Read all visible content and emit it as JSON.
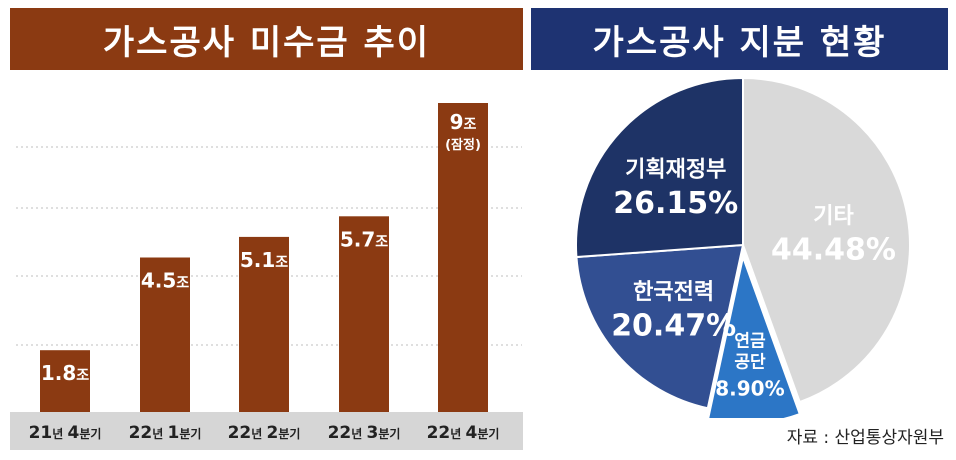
{
  "colors": {
    "left_title_bg": "#8b3a12",
    "right_title_bg": "#1e3372",
    "bar": "#8b3a12",
    "axis_strip": "#d6d6d6",
    "grid": "#bfbfbf"
  },
  "left": {
    "title": "가스공사 미수금 추이",
    "chart_data": {
      "type": "bar",
      "categories": [
        {
          "num": "21",
          "unit": "년",
          "q": "4",
          "suffix": "분기"
        },
        {
          "num": "22",
          "unit": "년",
          "q": "1",
          "suffix": "분기"
        },
        {
          "num": "22",
          "unit": "년",
          "q": "2",
          "suffix": "분기"
        },
        {
          "num": "22",
          "unit": "년",
          "q": "3",
          "suffix": "분기"
        },
        {
          "num": "22",
          "unit": "년",
          "q": "4",
          "suffix": "분기"
        }
      ],
      "values": [
        1.8,
        4.5,
        5.1,
        5.7,
        9
      ],
      "value_labels": [
        "1.8",
        "4.5",
        "5.1",
        "5.7",
        "9"
      ],
      "unit": "조",
      "notes": [
        "",
        "",
        "",
        "",
        "(잠정)"
      ],
      "ylim": [
        0,
        10
      ],
      "grid": true
    }
  },
  "right": {
    "title": "가스공사 지분 현황",
    "chart_data": {
      "type": "pie",
      "slices": [
        {
          "label_lines": [
            "기타"
          ],
          "value": 44.48,
          "pct": "44.48%",
          "color": "#d9d9d9",
          "text_color": "#ffffff"
        },
        {
          "label_lines": [
            "연금",
            "공단"
          ],
          "value": 8.9,
          "pct": "8.90%",
          "color": "#2c76c6",
          "text_color": "#ffffff"
        },
        {
          "label_lines": [
            "한국전력"
          ],
          "value": 20.47,
          "pct": "20.47%",
          "color": "#324f92",
          "text_color": "#ffffff"
        },
        {
          "label_lines": [
            "기획재정부"
          ],
          "value": 26.15,
          "pct": "26.15%",
          "color": "#1e3366",
          "text_color": "#ffffff"
        }
      ]
    }
  },
  "source": "자료 : 산업통상자원부"
}
